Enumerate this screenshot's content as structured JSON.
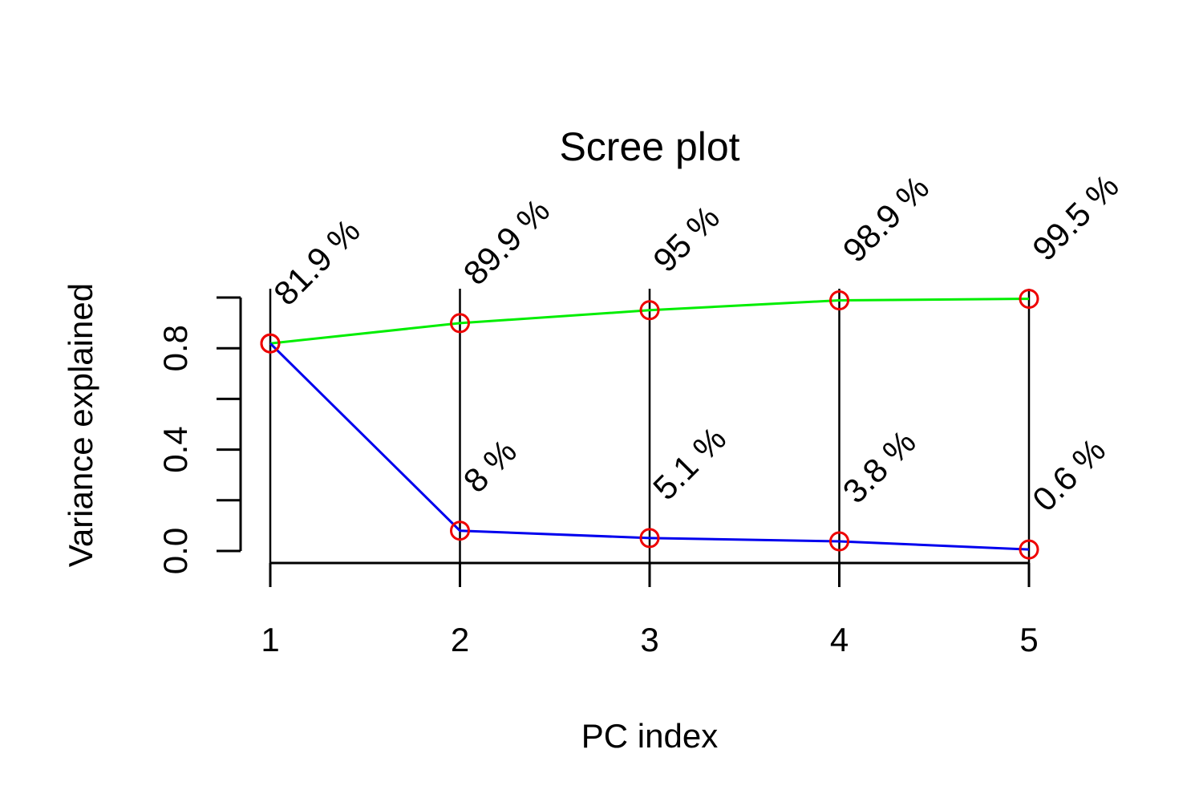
{
  "chart_data": {
    "type": "line",
    "title": "Scree plot",
    "xlabel": "PC index",
    "ylabel": "Variance explained",
    "x": [
      1,
      2,
      3,
      4,
      5
    ],
    "x_ticks": [
      "1",
      "2",
      "3",
      "4",
      "5"
    ],
    "y_ticks": [
      "0.0",
      "0.4",
      "0.8"
    ],
    "y_tick_values": [
      0.0,
      0.2,
      0.4,
      0.6,
      0.8,
      1.0
    ],
    "ylim": [
      0,
      1
    ],
    "grid": false,
    "legend": "none",
    "series": [
      {
        "key": "cumulative",
        "values": [
          0.819,
          0.899,
          0.95,
          0.989,
          0.995
        ],
        "labels": [
          "81.9 %",
          "89.9 %",
          "95 %",
          "98.9 %",
          "99.5 %"
        ],
        "line_color": "#00ee00"
      },
      {
        "key": "individual",
        "values": [
          0.819,
          0.08,
          0.051,
          0.038,
          0.006
        ],
        "labels": [
          "",
          "8 %",
          "5.1 %",
          "3.8 %",
          "0.6 %"
        ],
        "line_color": "#0000ee"
      }
    ],
    "marker_color": "#ee0000",
    "vertical_lines": true
  }
}
